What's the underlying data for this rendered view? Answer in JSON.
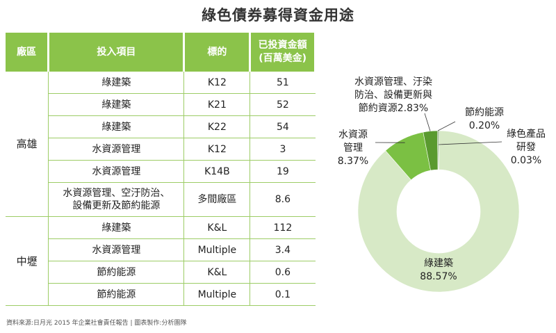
{
  "title": "綠色債券募得資金用途",
  "table": {
    "headers": [
      "廠區",
      "投入項目",
      "標的",
      "已投資金額",
      "(百萬美金)"
    ],
    "groups": [
      {
        "region": "高雄",
        "rows": [
          {
            "item": "綠建築",
            "target": "K12",
            "amount": "51"
          },
          {
            "item": "綠建築",
            "target": "K21",
            "amount": "52"
          },
          {
            "item": "綠建築",
            "target": "K22",
            "amount": "54"
          },
          {
            "item": "水資源管理",
            "target": "K12",
            "amount": "3"
          },
          {
            "item": "水資源管理",
            "target": "K14B",
            "amount": "19"
          },
          {
            "item_line1": "水資源管理、空汙防治、",
            "item_line2": "設備更新及節約能源",
            "target": "多間廠區",
            "amount": "8.6"
          }
        ]
      },
      {
        "region": "中壢",
        "rows": [
          {
            "item": "綠建築",
            "target": "K&L",
            "amount": "112"
          },
          {
            "item": "水資源管理",
            "target": "Multiple",
            "amount": "3.4"
          },
          {
            "item": "節約能源",
            "target": "K&L",
            "amount": "0.6"
          },
          {
            "item": "節約能源",
            "target": "Multiple",
            "amount": "0.1"
          }
        ]
      }
    ]
  },
  "source": "資料來源:日月光 2015 年企業社會責任報告 | 圖表製作:分析團隊",
  "chart_data": {
    "type": "pie",
    "donut": true,
    "slices": [
      {
        "label_lines": [
          "綠建築"
        ],
        "pct_text": "88.57%",
        "value": 88.57,
        "color": "#d7e9c6"
      },
      {
        "label_lines": [
          "水資源",
          "管理"
        ],
        "pct_text": "8.37%",
        "value": 8.37,
        "color": "#7bc043"
      },
      {
        "label_lines": [
          "水資源管理、汙染",
          "防治、設備更新與",
          "節約資源"
        ],
        "pct_text": "2.83%",
        "value": 2.83,
        "color": "#5a9a2f"
      },
      {
        "label_lines": [
          "節約能源"
        ],
        "pct_text": "0.20%",
        "value": 0.2,
        "color": "#3e7a1e"
      },
      {
        "label_lines": [
          "綠色產品",
          "研發"
        ],
        "pct_text": "0.03%",
        "value": 0.03,
        "color": "#2f5f16"
      }
    ]
  }
}
